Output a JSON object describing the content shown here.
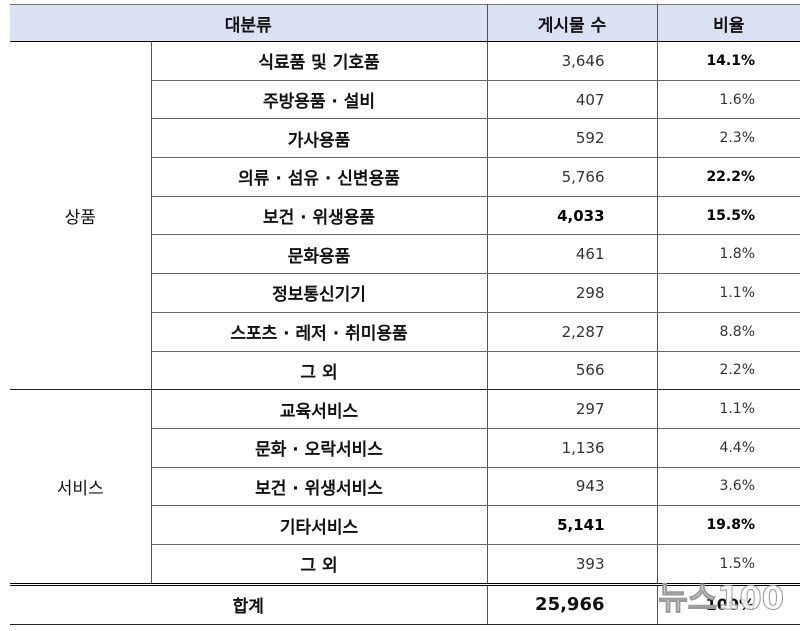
{
  "header": {
    "category": "대분류",
    "count": "게시물 수",
    "ratio": "비율"
  },
  "groups": [
    {
      "name": "상품",
      "rows": [
        {
          "label": "식료품 및 기호품",
          "count": "3,646",
          "ratio": "14.1%",
          "count_bold": false,
          "ratio_bold": true
        },
        {
          "label": "주방용품 · 설비",
          "count": "407",
          "ratio": "1.6%",
          "count_bold": false,
          "ratio_bold": false
        },
        {
          "label": "가사용품",
          "count": "592",
          "ratio": "2.3%",
          "count_bold": false,
          "ratio_bold": false
        },
        {
          "label": "의류 · 섬유 · 신변용품",
          "count": "5,766",
          "ratio": "22.2%",
          "count_bold": false,
          "ratio_bold": true
        },
        {
          "label": "보건 · 위생용품",
          "count": "4,033",
          "ratio": "15.5%",
          "count_bold": true,
          "ratio_bold": true
        },
        {
          "label": "문화용품",
          "count": "461",
          "ratio": "1.8%",
          "count_bold": false,
          "ratio_bold": false
        },
        {
          "label": "정보통신기기",
          "count": "298",
          "ratio": "1.1%",
          "count_bold": false,
          "ratio_bold": false
        },
        {
          "label": "스포츠 · 레저 · 취미용품",
          "count": "2,287",
          "ratio": "8.8%",
          "count_bold": false,
          "ratio_bold": false
        },
        {
          "label": "그 외",
          "count": "566",
          "ratio": "2.2%",
          "count_bold": false,
          "ratio_bold": false
        }
      ]
    },
    {
      "name": "서비스",
      "rows": [
        {
          "label": "교육서비스",
          "count": "297",
          "ratio": "1.1%",
          "count_bold": false,
          "ratio_bold": false
        },
        {
          "label": "문화 · 오락서비스",
          "count": "1,136",
          "ratio": "4.4%",
          "count_bold": false,
          "ratio_bold": false
        },
        {
          "label": "보건 · 위생서비스",
          "count": "943",
          "ratio": "3.6%",
          "count_bold": false,
          "ratio_bold": false
        },
        {
          "label": "기타서비스",
          "count": "5,141",
          "ratio": "19.8%",
          "count_bold": true,
          "ratio_bold": true
        },
        {
          "label": "그 외",
          "count": "393",
          "ratio": "1.5%",
          "count_bold": false,
          "ratio_bold": false
        }
      ]
    }
  ],
  "total": {
    "label": "합계",
    "count": "25,966",
    "ratio": "100%"
  },
  "watermark": "뉴스100"
}
